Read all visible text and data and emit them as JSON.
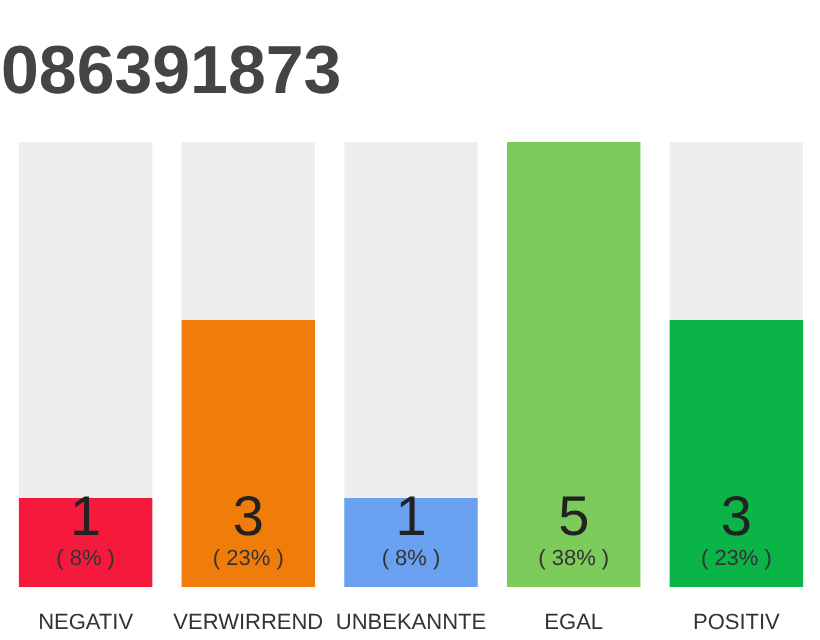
{
  "chart_data": {
    "type": "bar",
    "title": "086391873",
    "categories": [
      "NEGATIV",
      "VERWIRREND",
      "UNBEKANNTE",
      "EGAL",
      "POSITIV"
    ],
    "values": [
      1,
      3,
      1,
      5,
      3
    ],
    "colors": [
      "#f51a3c",
      "#f07d0a",
      "#6aa0f0",
      "#7dcb5a",
      "#0ab446"
    ],
    "ylim": [
      0,
      5
    ],
    "data_labels": true,
    "annotations": [
      "( 8% )",
      "( 23% )",
      "( 8% )",
      "( 38% )",
      "( 23% )"
    ],
    "grid": false
  }
}
